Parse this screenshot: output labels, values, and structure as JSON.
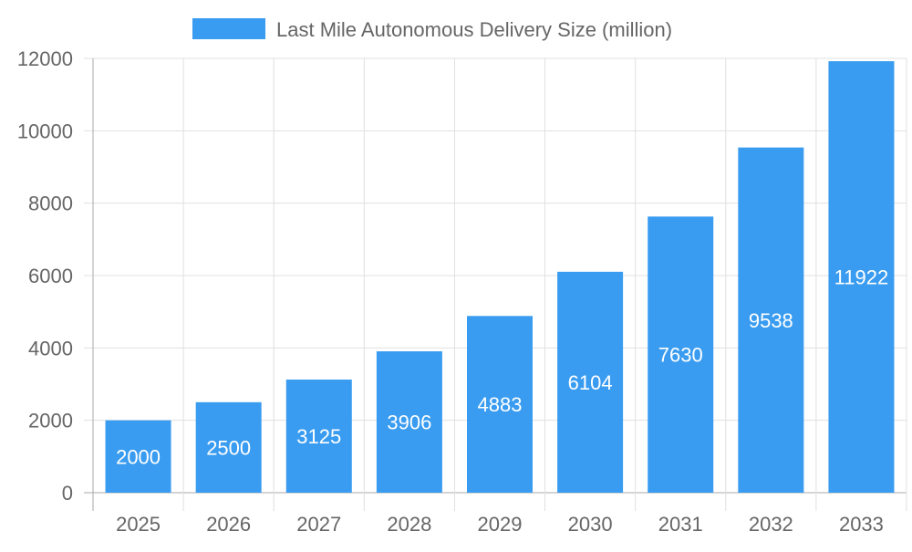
{
  "chart_data": {
    "type": "bar",
    "title": "",
    "xlabel": "",
    "ylabel": "",
    "categories": [
      "2025",
      "2026",
      "2027",
      "2028",
      "2029",
      "2030",
      "2031",
      "2032",
      "2033"
    ],
    "series": [
      {
        "name": "Last Mile Autonomous Delivery Size (million)",
        "values": [
          2000,
          2500,
          3125,
          3906,
          4883,
          6104,
          7630,
          9538,
          11922
        ],
        "color": "#399cf0"
      }
    ],
    "ylim": [
      0,
      12000
    ],
    "yticks": [
      0,
      2000,
      4000,
      6000,
      8000,
      10000,
      12000
    ],
    "grid": true,
    "legend": "top-center",
    "data_labels": true
  }
}
